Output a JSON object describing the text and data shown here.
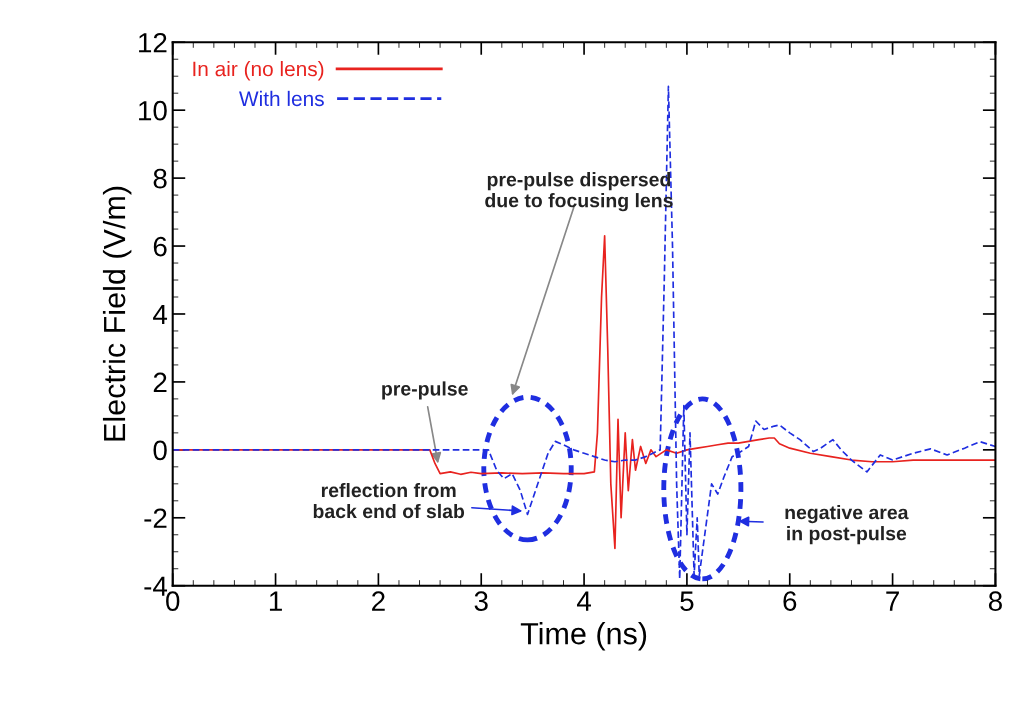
{
  "chart_data": {
    "type": "line",
    "xlabel": "Time (ns)",
    "ylabel": "Electric Field (V/m)",
    "xlim": [
      0,
      8
    ],
    "ylim": [
      -4,
      12
    ],
    "xticks": [
      0,
      1,
      2,
      3,
      4,
      5,
      6,
      7,
      8
    ],
    "yticks": [
      -4,
      -2,
      0,
      2,
      4,
      6,
      8,
      10,
      12
    ],
    "grid": false,
    "legend": "top left",
    "marker": "none",
    "series": [
      {
        "name": "In air (no lens)",
        "color": "#e8231f",
        "line_style": "solid",
        "x": [
          0,
          2.5,
          2.55,
          2.6,
          2.7,
          2.8,
          2.9,
          3.0,
          3.2,
          3.4,
          3.6,
          3.8,
          4.0,
          4.1,
          4.13,
          4.17,
          4.2,
          4.23,
          4.26,
          4.3,
          4.33,
          4.36,
          4.4,
          4.43,
          4.47,
          4.5,
          4.55,
          4.6,
          4.65,
          4.7,
          4.8,
          4.9,
          5.0,
          5.1,
          5.2,
          5.3,
          5.4,
          5.5,
          5.6,
          5.7,
          5.8,
          5.85,
          5.9,
          6.0,
          6.2,
          6.4,
          6.6,
          6.8,
          7.0,
          7.2,
          7.4,
          7.6,
          7.8,
          8.0
        ],
        "values": [
          0,
          0,
          -0.4,
          -0.7,
          -0.65,
          -0.72,
          -0.66,
          -0.7,
          -0.68,
          -0.7,
          -0.68,
          -0.7,
          -0.7,
          -0.65,
          0.5,
          4.5,
          6.3,
          3.0,
          -1.0,
          -2.9,
          0.9,
          -2.0,
          0.5,
          -1.2,
          0.3,
          -0.6,
          0.1,
          -0.4,
          0.0,
          -0.2,
          0.0,
          -0.1,
          0.0,
          0.05,
          0.1,
          0.15,
          0.2,
          0.2,
          0.25,
          0.3,
          0.35,
          0.35,
          0.18,
          0.05,
          -0.1,
          -0.2,
          -0.3,
          -0.35,
          -0.35,
          -0.3,
          -0.3,
          -0.3,
          -0.3,
          -0.3
        ]
      },
      {
        "name": "With lens",
        "color": "#1f2ee0",
        "line_style": "dashed",
        "x": [
          0,
          3.0,
          3.07,
          3.15,
          3.22,
          3.3,
          3.38,
          3.45,
          3.55,
          3.65,
          3.72,
          3.8,
          3.9,
          4.0,
          4.1,
          4.2,
          4.3,
          4.4,
          4.5,
          4.6,
          4.7,
          4.74,
          4.78,
          4.82,
          4.86,
          4.9,
          4.93,
          4.97,
          5.0,
          5.03,
          5.07,
          5.1,
          5.12,
          5.16,
          5.24,
          5.3,
          5.36,
          5.44,
          5.5,
          5.6,
          5.67,
          5.75,
          5.85,
          5.9,
          6.0,
          6.1,
          6.23,
          6.3,
          6.42,
          6.5,
          6.6,
          6.75,
          6.88,
          7.0,
          7.2,
          7.37,
          7.53,
          7.7,
          7.85,
          8.0
        ],
        "values": [
          0,
          0,
          0,
          -0.6,
          -0.85,
          -0.7,
          -1.2,
          -1.9,
          -1.0,
          -0.1,
          0.25,
          0.15,
          0.0,
          -0.1,
          -0.2,
          -0.3,
          -0.35,
          -0.3,
          -0.3,
          -0.2,
          -0.05,
          0.0,
          5.0,
          10.7,
          6.0,
          -1.0,
          -3.8,
          1.3,
          -2.5,
          0.5,
          -3.7,
          -2.0,
          -3.7,
          -2.8,
          -1.0,
          -1.3,
          -0.8,
          -0.2,
          -0.1,
          0.1,
          0.85,
          0.6,
          0.7,
          0.73,
          0.5,
          0.3,
          -0.05,
          0.05,
          0.3,
          0.0,
          -0.3,
          -0.65,
          -0.15,
          -0.3,
          -0.1,
          0.03,
          -0.15,
          0.05,
          0.24,
          0.1
        ]
      }
    ],
    "annotations": [
      {
        "text": "pre-pulse",
        "x": 2.58,
        "y": -0.4
      },
      "pre-pulse dispersed\ndue to focusing lens",
      {
        "text": "reflection from\nback end of slab",
        "x": 3.4,
        "y": -1.8
      },
      "negative area\nin post-pulse"
    ]
  }
}
